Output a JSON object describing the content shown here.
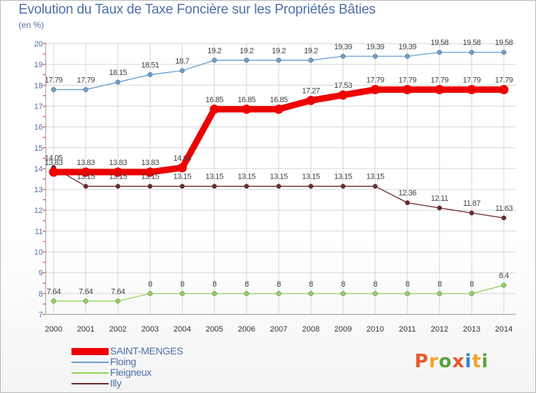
{
  "title": "Evolution du Taux de Taxe Foncière sur les Propriétés Bâties",
  "unit_label": "(en %)",
  "logo_text": "Proxiti",
  "colors": {
    "saint_menges": "#ee0000",
    "floing": "#6a9fd0",
    "fleigneux": "#94d35c",
    "illy": "#6b2a2a",
    "text": "#4d6fa8",
    "grid": "#d6d6d6"
  },
  "chart_data": {
    "type": "line",
    "title": "Evolution du Taux de Taxe Foncière sur les Propriétés Bâties",
    "ylabel": "(en %)",
    "xlabel": "",
    "categories": [
      "2000",
      "2001",
      "2002",
      "2003",
      "2004",
      "2005",
      "2006",
      "2007",
      "2008",
      "2009",
      "2010",
      "2011",
      "2012",
      "2013",
      "2014"
    ],
    "ylim": [
      7,
      20
    ],
    "yticks": [
      "7",
      "8",
      "9",
      "10",
      "11",
      "12",
      "13",
      "14",
      "15",
      "16",
      "17",
      "18",
      "19",
      "20"
    ],
    "series": [
      {
        "name": "SAINT-MENGES",
        "values": [
          13.83,
          13.83,
          13.83,
          13.83,
          14.04,
          16.85,
          16.85,
          16.85,
          17.27,
          17.53,
          17.79,
          17.79,
          17.79,
          17.79,
          17.79
        ],
        "labels": [
          "13.83",
          "13.83",
          "13.83",
          "13.83",
          "14.04",
          "16.85",
          "16.85",
          "16.85",
          "17.27",
          "17.53",
          "17.79",
          "17.79",
          "17.79",
          "17.79",
          "17.79"
        ]
      },
      {
        "name": "Floing",
        "values": [
          17.79,
          17.79,
          18.15,
          18.51,
          18.7,
          19.2,
          19.2,
          19.2,
          19.2,
          19.39,
          19.39,
          19.39,
          19.58,
          19.58,
          19.58
        ],
        "labels": [
          "17.79",
          "17.79",
          "18.15",
          "18.51",
          "18.7",
          "19.2",
          "19.2",
          "19.2",
          "19.2",
          "19.39",
          "19.39",
          "19.39",
          "19.58",
          "19.58",
          "19.58"
        ]
      },
      {
        "name": "Fleigneux",
        "values": [
          7.64,
          7.64,
          7.64,
          8,
          8,
          8,
          8,
          8,
          8,
          8,
          8,
          8,
          8,
          8,
          8.4
        ],
        "labels": [
          "7.64",
          "7.64",
          "7.64",
          "8",
          "8",
          "8",
          "8",
          "8",
          "8",
          "8",
          "8",
          "8",
          "8",
          "8",
          "8.4"
        ]
      },
      {
        "name": "Illy",
        "values": [
          14.05,
          13.15,
          13.15,
          13.15,
          13.15,
          13.15,
          13.15,
          13.15,
          13.15,
          13.15,
          13.15,
          12.36,
          12.11,
          11.87,
          11.63
        ],
        "labels": [
          "14.05",
          "13.15",
          "13.15",
          "13.15",
          "13.15",
          "13.15",
          "13.15",
          "13.15",
          "13.15",
          "13.15",
          "13.15",
          "12.36",
          "12.11",
          "11.87",
          "11.63"
        ]
      }
    ],
    "legend": [
      "SAINT-MENGES",
      "Floing",
      "Fleigneux",
      "Illy"
    ],
    "legend_position": "bottom-left",
    "grid": true
  }
}
